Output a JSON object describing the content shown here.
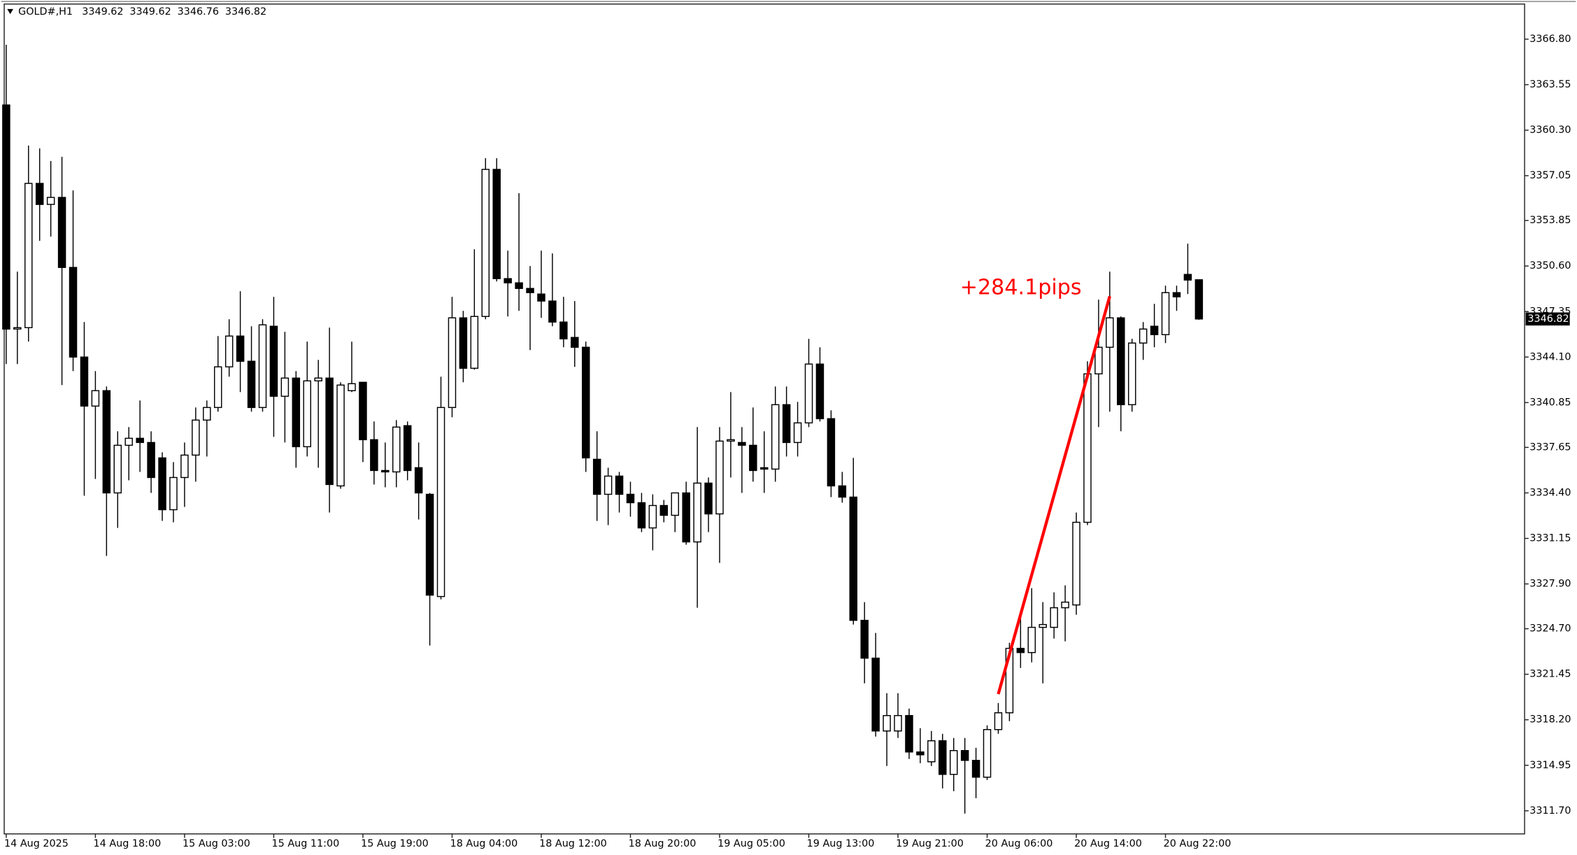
{
  "chart_data": {
    "type": "candlestick",
    "title": "GOLD#,H1",
    "categories": [
      "14 Aug 2025",
      null,
      null,
      null,
      null,
      null,
      null,
      null,
      "14 Aug 18:00",
      null,
      null,
      null,
      null,
      null,
      null,
      null,
      "15 Aug 03:00",
      null,
      null,
      null,
      null,
      null,
      null,
      null,
      "15 Aug 11:00",
      null,
      null,
      null,
      null,
      null,
      null,
      null,
      "15 Aug 19:00",
      null,
      null,
      null,
      null,
      null,
      null,
      null,
      "18 Aug 04:00",
      null,
      null,
      null,
      null,
      null,
      null,
      null,
      "18 Aug 12:00",
      null,
      null,
      null,
      null,
      null,
      null,
      null,
      "18 Aug 20:00",
      null,
      null,
      null,
      null,
      null,
      null,
      null,
      "19 Aug 05:00",
      null,
      null,
      null,
      null,
      null,
      null,
      null,
      "19 Aug 13:00",
      null,
      null,
      null,
      null,
      null,
      null,
      null,
      "19 Aug 21:00",
      null,
      null,
      null,
      null,
      null,
      null,
      null,
      "20 Aug 06:00",
      null,
      null,
      null,
      null,
      null,
      null,
      null,
      "20 Aug 14:00",
      null,
      null,
      null,
      null,
      null,
      null,
      null,
      "20 Aug 22:00",
      null,
      null,
      null
    ],
    "open": [
      3362.1,
      3346.1,
      3346.2,
      3356.5,
      3355.0,
      3355.5,
      3350.5,
      3344.1,
      3340.6,
      3341.7,
      3334.4,
      3337.8,
      3338.3,
      3338.0,
      3336.9,
      3333.2,
      3335.5,
      3337.1,
      3339.6,
      3340.5,
      3343.4,
      3345.6,
      3343.8,
      3340.5,
      3346.3,
      3341.3,
      3342.6,
      3337.7,
      3342.4,
      3342.6,
      3334.9,
      3341.7,
      3342.3,
      3338.2,
      3336.0,
      3335.9,
      3339.2,
      3336.2,
      3334.3,
      3327.0,
      3340.5,
      3346.9,
      3343.3,
      3347.0,
      3357.5,
      3349.7,
      3349.4,
      3349.0,
      3348.6,
      3348.1,
      3346.6,
      3345.5,
      3344.8,
      3336.8,
      3334.3,
      3335.6,
      3334.3,
      3333.7,
      3331.9,
      3333.5,
      3332.8,
      3334.4,
      3330.9,
      3335.1,
      3332.9,
      3338.1,
      3338.0,
      3337.8,
      3336.2,
      3336.1,
      3340.7,
      3338.0,
      3339.4,
      3343.6,
      3339.7,
      3334.9,
      3334.1,
      3325.3,
      3322.6,
      3317.4,
      3317.4,
      3318.5,
      3315.9,
      3315.2,
      3316.7,
      3314.3,
      3316.0,
      3315.3,
      3314.1,
      3317.5,
      3318.7,
      3323.3,
      3323.0,
      3324.8,
      3324.8,
      3326.2,
      3326.4,
      3332.3,
      3342.9,
      3344.8,
      3346.9,
      3340.7,
      3345.1,
      3346.3,
      3345.7,
      3348.7,
      3350.0,
      3349.62
    ],
    "high": [
      3366.4,
      3350.2,
      3359.2,
      3359.0,
      3358.1,
      3358.4,
      3356.0,
      3346.6,
      3343.1,
      3342.0,
      3338.8,
      3339.1,
      3341.0,
      3338.8,
      3337.3,
      3336.6,
      3338.0,
      3340.5,
      3341.0,
      3345.6,
      3346.8,
      3348.8,
      3346.3,
      3346.8,
      3348.4,
      3345.9,
      3343.1,
      3345.2,
      3343.9,
      3346.2,
      3342.3,
      3345.2,
      3342.3,
      3339.5,
      3338.0,
      3339.6,
      3339.5,
      3338.0,
      3334.4,
      3342.7,
      3348.4,
      3347.4,
      3351.8,
      3358.3,
      3358.3,
      3351.7,
      3355.8,
      3350.6,
      3351.7,
      3351.5,
      3348.4,
      3348.1,
      3345.2,
      3338.8,
      3336.2,
      3335.9,
      3335.2,
      3334.4,
      3334.3,
      3333.9,
      3334.4,
      3335.2,
      3339.1,
      3335.5,
      3339.1,
      3341.6,
      3339.1,
      3340.5,
      3338.8,
      3342.0,
      3342.0,
      3340.9,
      3345.4,
      3344.8,
      3340.3,
      3335.9,
      3336.9,
      3326.6,
      3324.4,
      3320.1,
      3320.1,
      3319.0,
      3317.6,
      3317.4,
      3317.2,
      3316.9,
      3316.9,
      3316.2,
      3317.8,
      3319.4,
      3323.7,
      3325.8,
      3327.6,
      3326.6,
      3327.3,
      3327.8,
      3333.0,
      3343.8,
      3348.2,
      3350.2,
      3347.0,
      3345.4,
      3346.6,
      3347.9,
      3349.2,
      3349.2,
      3352.2,
      3349.62
    ],
    "low": [
      3343.6,
      3343.6,
      3345.2,
      3352.4,
      3352.7,
      3342.1,
      3343.1,
      3334.2,
      3335.4,
      3329.9,
      3331.9,
      3335.3,
      3335.9,
      3334.4,
      3332.4,
      3332.3,
      3333.4,
      3335.2,
      3337.0,
      3340.2,
      3342.7,
      3341.6,
      3340.2,
      3340.2,
      3338.4,
      3338.0,
      3336.2,
      3337.0,
      3336.2,
      3333.0,
      3334.7,
      3341.6,
      3336.6,
      3335.0,
      3334.8,
      3334.8,
      3335.3,
      3332.5,
      3323.5,
      3326.8,
      3339.8,
      3342.3,
      3343.2,
      3346.8,
      3349.5,
      3347.0,
      3347.4,
      3344.6,
      3346.9,
      3346.3,
      3344.8,
      3343.4,
      3335.9,
      3332.4,
      3332.1,
      3333.0,
      3332.7,
      3331.6,
      3330.3,
      3332.3,
      3331.6,
      3330.7,
      3326.2,
      3331.6,
      3329.4,
      3335.5,
      3334.4,
      3335.2,
      3334.4,
      3335.2,
      3337.0,
      3337.0,
      3339.1,
      3339.5,
      3334.1,
      3333.7,
      3325.0,
      3320.8,
      3317.0,
      3314.9,
      3316.9,
      3315.4,
      3315.1,
      3314.9,
      3313.3,
      3313.1,
      3311.5,
      3312.6,
      3313.9,
      3317.2,
      3318.1,
      3321.9,
      3322.3,
      3320.8,
      3324.0,
      3323.8,
      3325.7,
      3332.1,
      3339.1,
      3340.2,
      3338.8,
      3340.2,
      3343.9,
      3344.8,
      3345.1,
      3347.4,
      3348.6,
      3346.76
    ],
    "close": [
      3346.1,
      3346.2,
      3356.5,
      3355.0,
      3355.5,
      3350.5,
      3344.1,
      3340.6,
      3341.7,
      3334.4,
      3337.8,
      3338.3,
      3338.0,
      3335.5,
      3333.2,
      3335.5,
      3337.1,
      3339.6,
      3340.5,
      3343.4,
      3345.6,
      3343.8,
      3340.5,
      3346.4,
      3341.3,
      3342.6,
      3337.7,
      3342.4,
      3342.6,
      3335.0,
      3342.1,
      3342.2,
      3338.2,
      3336.0,
      3335.9,
      3339.1,
      3336.0,
      3334.4,
      3327.1,
      3340.5,
      3346.9,
      3343.3,
      3347.0,
      3357.5,
      3349.7,
      3349.4,
      3349.0,
      3348.7,
      3348.1,
      3346.6,
      3345.4,
      3344.8,
      3336.9,
      3334.3,
      3335.6,
      3334.3,
      3333.7,
      3331.9,
      3333.5,
      3332.8,
      3334.4,
      3330.9,
      3335.1,
      3332.9,
      3338.1,
      3338.2,
      3337.8,
      3336.0,
      3336.1,
      3340.7,
      3338.0,
      3339.4,
      3343.6,
      3339.7,
      3334.9,
      3334.1,
      3325.3,
      3322.6,
      3317.4,
      3318.5,
      3318.5,
      3315.9,
      3315.7,
      3316.7,
      3314.3,
      3316.0,
      3315.3,
      3314.1,
      3317.5,
      3318.7,
      3323.3,
      3323.0,
      3324.8,
      3325.0,
      3326.2,
      3326.6,
      3332.3,
      3342.9,
      3344.8,
      3346.9,
      3340.7,
      3345.1,
      3346.1,
      3345.7,
      3348.7,
      3348.4,
      3349.6,
      3346.82
    ],
    "ylim": [
      3310.05,
      3369.31
    ],
    "yticks": [
      {
        "value": 3366.8,
        "label": "3366.80"
      },
      3363.55,
      {
        "value": 3360.3,
        "label": "3360.30"
      },
      3357.05,
      3353.85,
      {
        "value": 3350.6,
        "label": "3350.60"
      },
      3347.35,
      {
        "value": 3344.1,
        "label": "3344.10"
      },
      3340.85,
      3337.65,
      {
        "value": 3334.4,
        "label": "3334.40"
      },
      3331.15,
      {
        "value": 3327.9,
        "label": "3327.90"
      },
      {
        "value": 3324.7,
        "label": "3324.70"
      },
      3321.45,
      {
        "value": 3318.2,
        "label": "3318.20"
      },
      3314.95,
      {
        "value": 3311.7,
        "label": "3311.70"
      }
    ],
    "grid": false,
    "colors": {
      "up": "#ffffff",
      "down": "#000000",
      "wick": "#000000"
    },
    "annotation": {
      "text": "+284.1pips",
      "color": "#ff0000",
      "x": [
        89,
        99
      ],
      "y": [
        3320.03,
        3348.44
      ]
    }
  }
}
